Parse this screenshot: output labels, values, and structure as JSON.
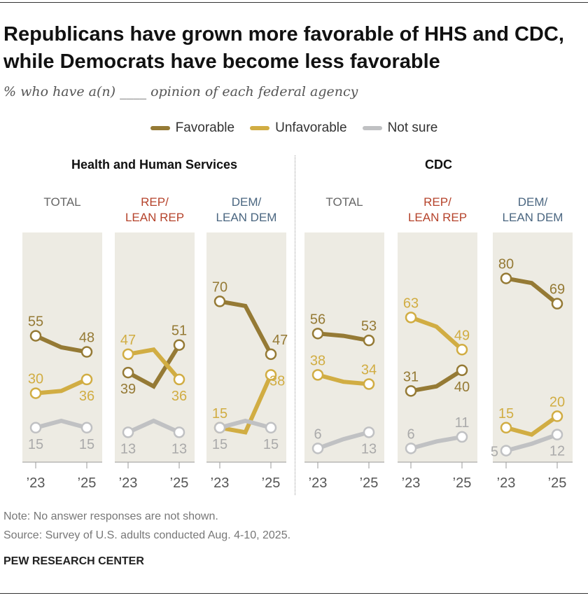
{
  "title": "Republicans have grown more favorable of HHS and CDC, while Democrats have become less favorable",
  "subtitle": "% who have a(n) ____ opinion of each federal agency",
  "legend": [
    {
      "label": "Favorable",
      "color": "#957a35"
    },
    {
      "label": "Unfavorable",
      "color": "#d1ad43"
    },
    {
      "label": "Not sure",
      "color": "#c0c1c3"
    }
  ],
  "note": "Note: No answer responses are not shown.",
  "source": "Source: Survey of U.S. adults conducted Aug. 4-10, 2025.",
  "org": "PEW RESEARCH CENTER",
  "chart_data": {
    "type": "line",
    "ylim": [
      0,
      100
    ],
    "x_tick_labels": [
      "’23",
      "’25"
    ],
    "x": [
      "2023",
      "2024",
      "2025"
    ],
    "sections": [
      {
        "title": "Health and Human Services",
        "panels": [
          {
            "header": "TOTAL",
            "header_color": "#666666",
            "series": [
              {
                "name": "Favorable",
                "values": [
                  55,
                  50,
                  48
                ],
                "label_pos": [
                  "above",
                  "above"
                ]
              },
              {
                "name": "Unfavorable",
                "values": [
                  30,
                  31,
                  36
                ],
                "label_pos": [
                  "above",
                  "below"
                ]
              },
              {
                "name": "Not sure",
                "values": [
                  15,
                  18,
                  15
                ],
                "label_pos": [
                  "below",
                  "below"
                ]
              }
            ]
          },
          {
            "header": "REP/\nLEAN REP",
            "header_color": "#b5432b",
            "series": [
              {
                "name": "Favorable",
                "values": [
                  39,
                  33,
                  51
                ],
                "label_pos": [
                  "below",
                  "above"
                ]
              },
              {
                "name": "Unfavorable",
                "values": [
                  47,
                  49,
                  36
                ],
                "label_pos": [
                  "above",
                  "below"
                ]
              },
              {
                "name": "Not sure",
                "values": [
                  13,
                  18,
                  13
                ],
                "label_pos": [
                  "below",
                  "below"
                ]
              }
            ]
          },
          {
            "header": "DEM/\nLEAN DEM",
            "header_color": "#4a6680",
            "series": [
              {
                "name": "Favorable",
                "values": [
                  70,
                  68,
                  47
                ],
                "label_pos": [
                  "above",
                  "right-above"
                ]
              },
              {
                "name": "Unfavorable",
                "values": [
                  15,
                  13,
                  38
                ],
                "label_pos": [
                  "above",
                  "right-below"
                ]
              },
              {
                "name": "Not sure",
                "values": [
                  15,
                  18,
                  15
                ],
                "label_pos": [
                  "below",
                  "below"
                ]
              }
            ]
          }
        ]
      },
      {
        "title": "CDC",
        "panels": [
          {
            "header": "TOTAL",
            "header_color": "#666666",
            "series": [
              {
                "name": "Favorable",
                "values": [
                  56,
                  55,
                  53
                ],
                "label_pos": [
                  "above",
                  "above"
                ]
              },
              {
                "name": "Unfavorable",
                "values": [
                  38,
                  35,
                  34
                ],
                "label_pos": [
                  "above",
                  "above"
                ]
              },
              {
                "name": "Not sure",
                "values": [
                  6,
                  10,
                  13
                ],
                "label_pos": [
                  "above",
                  "below"
                ]
              }
            ]
          },
          {
            "header": "REP/\nLEAN REP",
            "header_color": "#b5432b",
            "series": [
              {
                "name": "Favorable",
                "values": [
                  31,
                  33,
                  40
                ],
                "label_pos": [
                  "above",
                  "below"
                ]
              },
              {
                "name": "Unfavorable",
                "values": [
                  63,
                  59,
                  49
                ],
                "label_pos": [
                  "above",
                  "above"
                ]
              },
              {
                "name": "Not sure",
                "values": [
                  6,
                  9,
                  11
                ],
                "label_pos": [
                  "above",
                  "above"
                ]
              }
            ]
          },
          {
            "header": "DEM/\nLEAN DEM",
            "header_color": "#4a6680",
            "series": [
              {
                "name": "Favorable",
                "values": [
                  80,
                  78,
                  69
                ],
                "label_pos": [
                  "above",
                  "above"
                ]
              },
              {
                "name": "Unfavorable",
                "values": [
                  15,
                  12,
                  20
                ],
                "label_pos": [
                  "above",
                  "above"
                ]
              },
              {
                "name": "Not sure",
                "values": [
                  5,
                  8,
                  12
                ],
                "label_pos": [
                  "left",
                  "below"
                ]
              }
            ]
          }
        ]
      }
    ]
  }
}
